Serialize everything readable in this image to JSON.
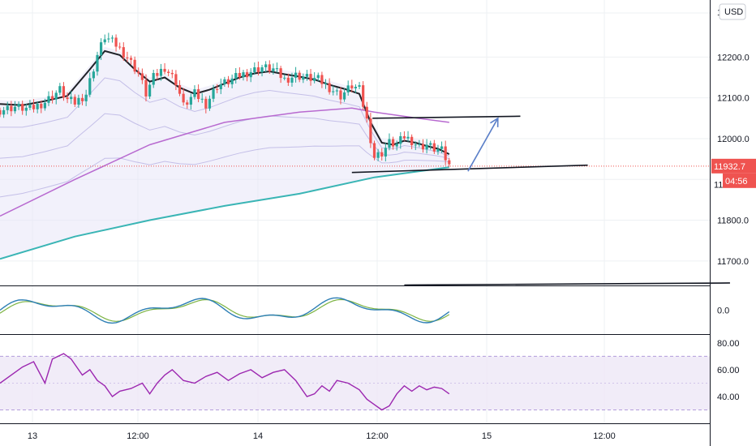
{
  "chart_data": {
    "type": "candlestick",
    "currency": "USD",
    "time_axis": {
      "labels": [
        "13",
        "12:00",
        "14",
        "12:00",
        "15",
        "12:00"
      ]
    },
    "price_panel": {
      "ylim": [
        11640,
        12340
      ],
      "tick_labels": [
        "12200.0",
        "12100.0",
        "12000.0",
        "11800.0",
        "11700.0"
      ],
      "tick_values": [
        12200,
        12100,
        12000,
        11800,
        11700
      ],
      "top_partial_label": "1",
      "hidden_tick_partial": "11",
      "last_price": "11932.7",
      "last_price_value": 11932.7,
      "countdown": "04:56",
      "colors": {
        "up": "#26a69a",
        "down": "#ef5350",
        "price_line": "#ef5350"
      },
      "close_series": [
        [
          0,
          12070
        ],
        [
          4,
          12078
        ],
        [
          8,
          12072
        ],
        [
          12,
          12090
        ],
        [
          16,
          12120
        ],
        [
          18,
          12095
        ],
        [
          20,
          12088
        ],
        [
          23,
          12110
        ],
        [
          26,
          12205
        ],
        [
          28,
          12250
        ],
        [
          31,
          12230
        ],
        [
          34,
          12200
        ],
        [
          37,
          12160
        ],
        [
          39,
          12110
        ],
        [
          41,
          12150
        ],
        [
          44,
          12175
        ],
        [
          47,
          12140
        ],
        [
          49,
          12080
        ],
        [
          52,
          12110
        ],
        [
          55,
          12085
        ],
        [
          58,
          12130
        ],
        [
          61,
          12140
        ],
        [
          64,
          12155
        ],
        [
          67,
          12165
        ],
        [
          70,
          12175
        ],
        [
          73,
          12170
        ],
        [
          76,
          12145
        ],
        [
          79,
          12155
        ],
        [
          82,
          12150
        ],
        [
          85,
          12145
        ],
        [
          88,
          12125
        ],
        [
          91,
          12105
        ],
        [
          94,
          12130
        ],
        [
          96,
          12120
        ],
        [
          98,
          12045
        ],
        [
          100,
          11955
        ],
        [
          102,
          11965
        ],
        [
          104,
          11990
        ],
        [
          106,
          11985
        ],
        [
          108,
          12005
        ],
        [
          110,
          11995
        ],
        [
          112,
          11980
        ],
        [
          114,
          11985
        ],
        [
          116,
          11975
        ],
        [
          118,
          11970
        ],
        [
          120,
          11932.7
        ]
      ],
      "ema_series": [
        [
          0,
          12085
        ],
        [
          6,
          12082
        ],
        [
          12,
          12092
        ],
        [
          18,
          12105
        ],
        [
          24,
          12170
        ],
        [
          28,
          12215
        ],
        [
          32,
          12205
        ],
        [
          36,
          12170
        ],
        [
          40,
          12140
        ],
        [
          44,
          12150
        ],
        [
          48,
          12125
        ],
        [
          52,
          12110
        ],
        [
          56,
          12120
        ],
        [
          60,
          12135
        ],
        [
          64,
          12150
        ],
        [
          68,
          12160
        ],
        [
          72,
          12165
        ],
        [
          76,
          12158
        ],
        [
          80,
          12152
        ],
        [
          84,
          12145
        ],
        [
          88,
          12132
        ],
        [
          92,
          12122
        ],
        [
          96,
          12110
        ],
        [
          99,
          12040
        ],
        [
          102,
          11990
        ],
        [
          105,
          11985
        ],
        [
          108,
          11995
        ],
        [
          111,
          11990
        ],
        [
          114,
          11982
        ],
        [
          117,
          11975
        ],
        [
          120,
          11962
        ]
      ],
      "purple_ma": [
        [
          0,
          11810
        ],
        [
          20,
          11900
        ],
        [
          40,
          11985
        ],
        [
          60,
          12040
        ],
        [
          80,
          12065
        ],
        [
          94,
          12075
        ],
        [
          100,
          12065
        ],
        [
          110,
          12052
        ],
        [
          120,
          12040
        ]
      ],
      "teal_ma": [
        [
          0,
          11705
        ],
        [
          20,
          11760
        ],
        [
          40,
          11800
        ],
        [
          60,
          11835
        ],
        [
          80,
          11865
        ],
        [
          100,
          11905
        ],
        [
          120,
          11930
        ]
      ],
      "trendlines": [
        {
          "from": [
            99.5,
            12050
          ],
          "to": [
            139,
            12055
          ],
          "color": "#131722"
        },
        {
          "from": [
            94,
            11917
          ],
          "to": [
            157,
            11935
          ],
          "color": "#131722"
        },
        {
          "from": [
            108,
            11641
          ],
          "to": [
            195,
            11646
          ],
          "color": "#131722"
        }
      ],
      "arrow": {
        "from": [
          125,
          11920
        ],
        "to": [
          133,
          12050
        ],
        "color": "#5b7fc8"
      }
    },
    "macd_panel": {
      "tick_label": "0.0",
      "tick_value": 0
    },
    "rsi_panel": {
      "ylim": [
        20,
        86
      ],
      "tick_labels": [
        "80.00",
        "60.00",
        "40.00"
      ],
      "tick_values": [
        80,
        60,
        40
      ],
      "band": [
        30,
        70
      ],
      "series": [
        [
          0,
          50
        ],
        [
          6,
          62
        ],
        [
          9,
          66
        ],
        [
          12,
          50
        ],
        [
          14,
          68
        ],
        [
          17,
          72
        ],
        [
          19,
          68
        ],
        [
          22,
          56
        ],
        [
          24,
          60
        ],
        [
          26,
          52
        ],
        [
          28,
          48
        ],
        [
          30,
          40
        ],
        [
          32,
          44
        ],
        [
          35,
          46
        ],
        [
          38,
          50
        ],
        [
          40,
          42
        ],
        [
          42,
          50
        ],
        [
          44,
          56
        ],
        [
          46,
          60
        ],
        [
          49,
          52
        ],
        [
          52,
          50
        ],
        [
          55,
          55
        ],
        [
          58,
          58
        ],
        [
          61,
          52
        ],
        [
          64,
          57
        ],
        [
          67,
          60
        ],
        [
          70,
          54
        ],
        [
          73,
          58
        ],
        [
          76,
          60
        ],
        [
          79,
          52
        ],
        [
          82,
          40
        ],
        [
          84,
          42
        ],
        [
          86,
          48
        ],
        [
          88,
          44
        ],
        [
          90,
          52
        ],
        [
          93,
          50
        ],
        [
          96,
          45
        ],
        [
          98,
          38
        ],
        [
          100,
          34
        ],
        [
          102,
          30
        ],
        [
          104,
          33
        ],
        [
          106,
          42
        ],
        [
          108,
          48
        ],
        [
          110,
          44
        ],
        [
          112,
          48
        ],
        [
          114,
          45
        ],
        [
          116,
          47
        ],
        [
          118,
          46
        ],
        [
          120,
          42
        ]
      ],
      "line_color": "#9c27b0",
      "band_color": "#ede7f6"
    }
  }
}
